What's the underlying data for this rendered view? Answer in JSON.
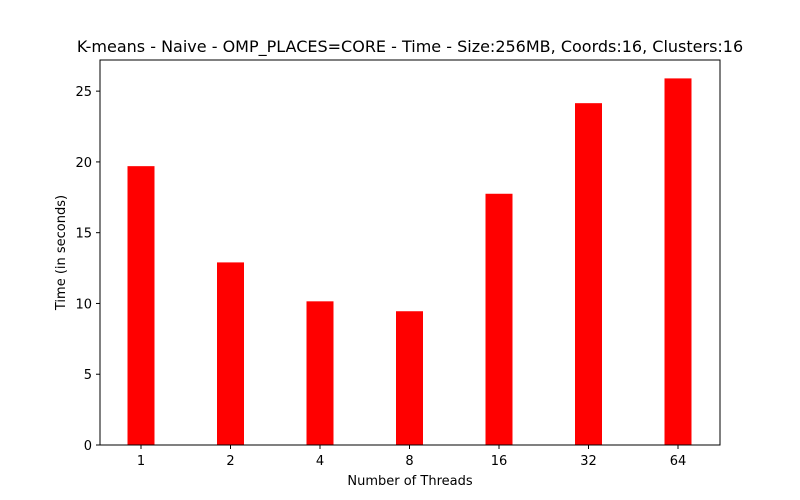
{
  "chart_data": {
    "type": "bar",
    "title": "K-means - Naive - OMP_PLACES=CORE - Time - Size:256MB, Coords:16, Clusters:16",
    "xlabel": "Number of Threads",
    "ylabel": "Time (in seconds)",
    "categories": [
      "1",
      "2",
      "4",
      "8",
      "16",
      "32",
      "64"
    ],
    "values": [
      19.7,
      12.9,
      10.15,
      9.45,
      17.75,
      24.15,
      25.9
    ],
    "ylim": [
      0,
      27.2
    ],
    "yticks": [
      0,
      5,
      10,
      15,
      20,
      25
    ],
    "bar_color": "#ff0000",
    "grid": false,
    "legend": false
  }
}
